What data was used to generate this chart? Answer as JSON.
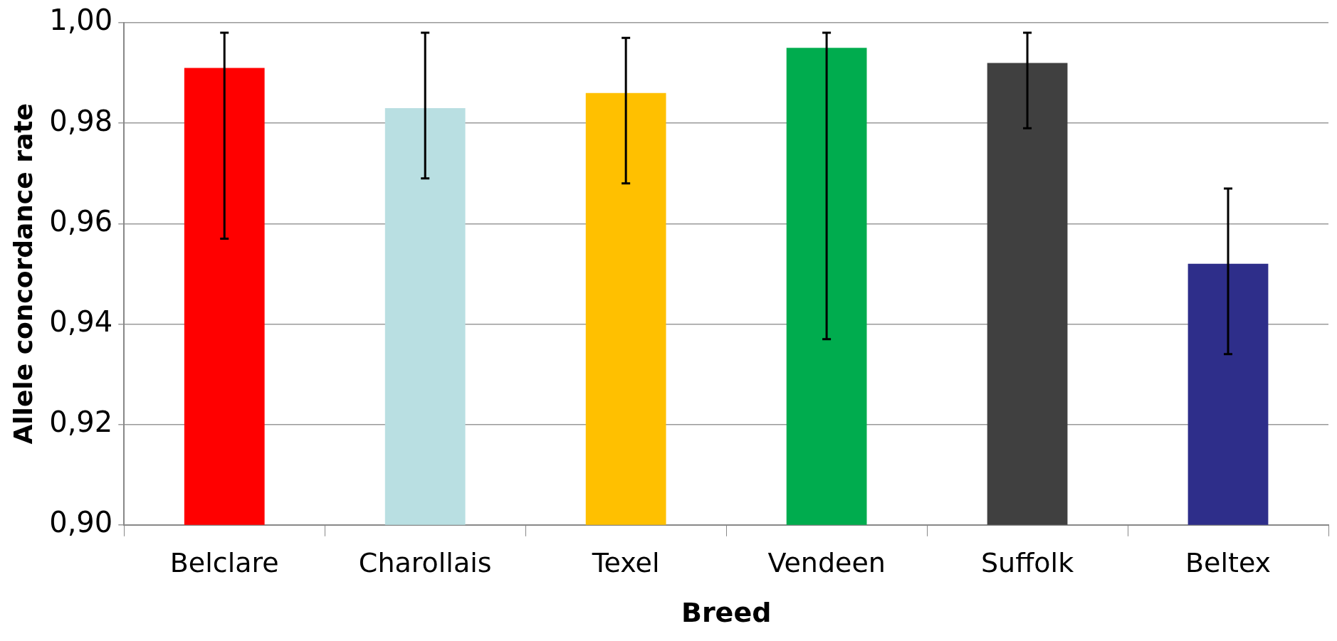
{
  "chart_data": {
    "type": "bar",
    "xlabel": "Breed",
    "ylabel": "Allele concordance rate",
    "categories": [
      "Belclare",
      "Charollais",
      "Texel",
      "Vendeen",
      "Suffolk",
      "Beltex"
    ],
    "values": [
      0.991,
      0.983,
      0.986,
      0.995,
      0.992,
      0.952
    ],
    "colors": [
      "#ff0000",
      "#b9dfe2",
      "#ffc000",
      "#00ac4e",
      "#404040",
      "#2e2e8a"
    ],
    "errors": [
      [
        0.957,
        0.998
      ],
      [
        0.969,
        0.998
      ],
      [
        0.968,
        0.997
      ],
      [
        0.937,
        0.998
      ],
      [
        0.979,
        0.998
      ],
      [
        0.934,
        0.967
      ]
    ],
    "ylim": [
      0.9,
      1.0
    ],
    "yticks": [
      {
        "value": 0.9,
        "label": "0,90"
      },
      {
        "value": 0.92,
        "label": "0,92"
      },
      {
        "value": 0.94,
        "label": "0,94"
      },
      {
        "value": 0.96,
        "label": "0,96"
      },
      {
        "value": 0.98,
        "label": "0,98"
      },
      {
        "value": 1.0,
        "label": "1,00"
      }
    ],
    "grid": "y",
    "legend": false
  }
}
